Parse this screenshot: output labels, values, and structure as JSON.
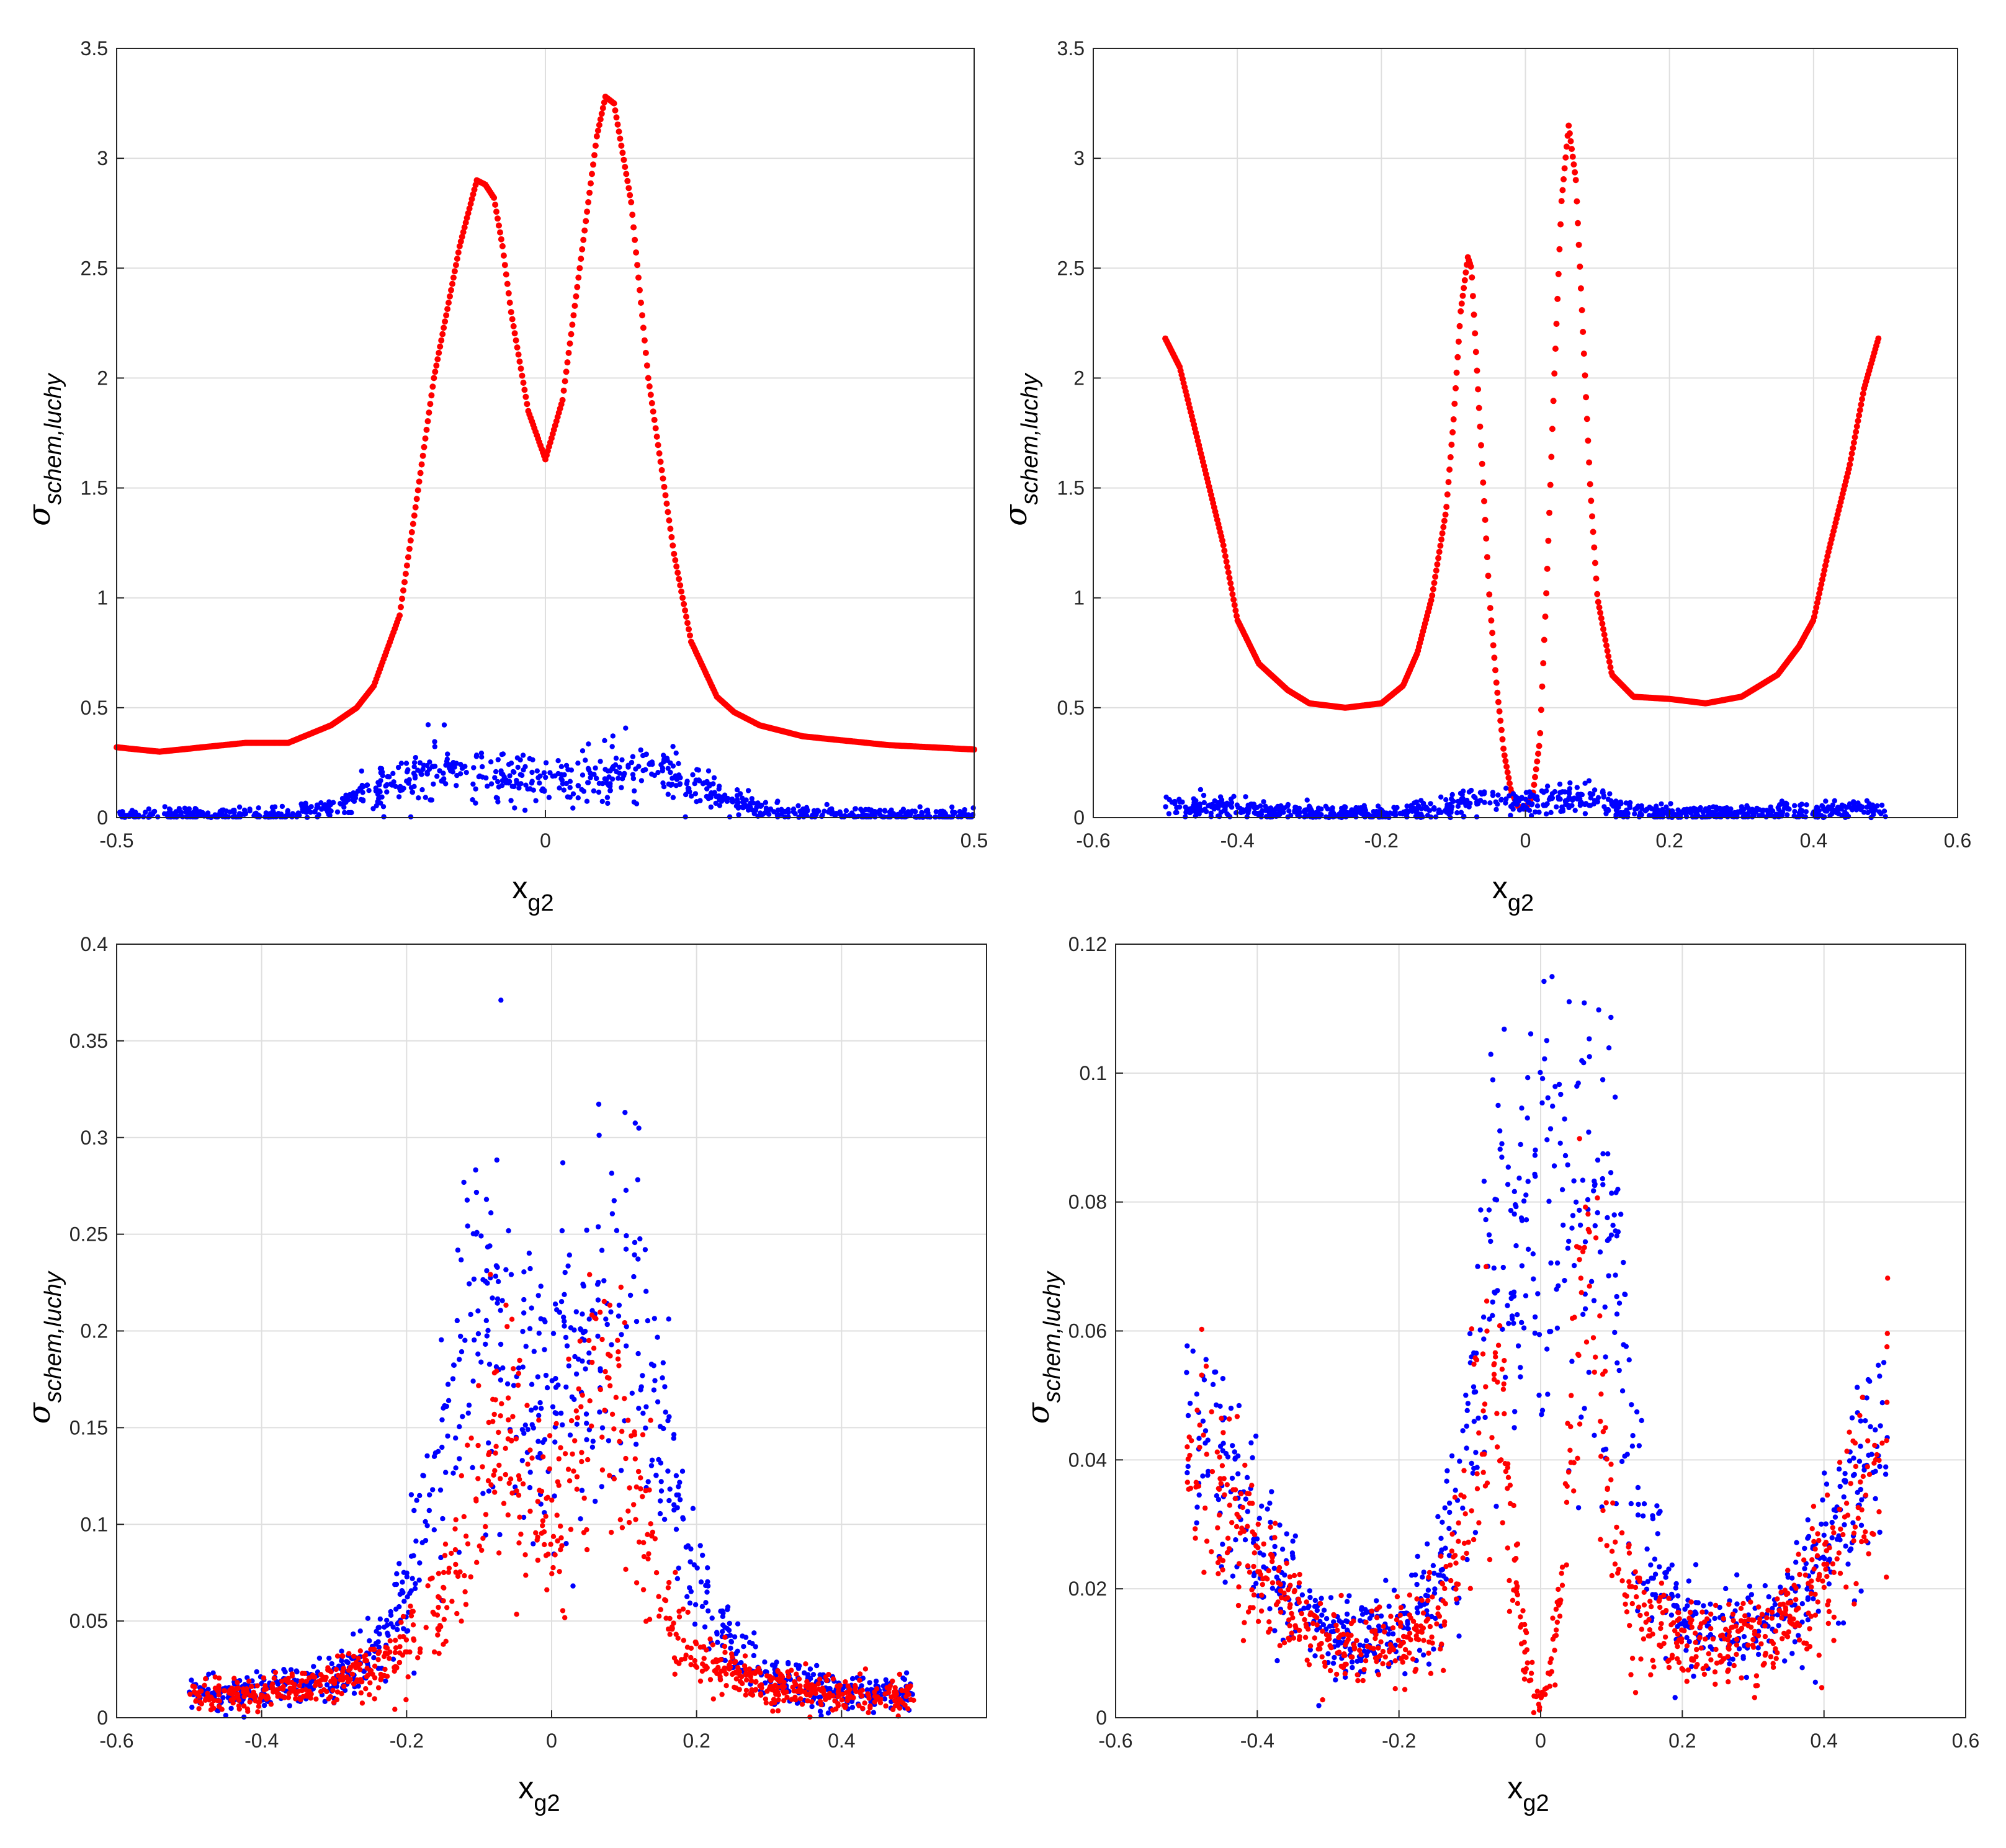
{
  "colors": {
    "red_series": "#ff0000",
    "blue_series": "#0000ff",
    "grid": "#dfdfdf",
    "axes": "#262626"
  },
  "chart_data": [
    {
      "type": "scatter",
      "panel": "top-left",
      "xlabel": {
        "main": "x",
        "sub": "g2"
      },
      "ylabel": {
        "main": "σ",
        "sub": "schem,luchy"
      },
      "xlim": [
        -0.5,
        0.5
      ],
      "ylim": [
        0,
        3.5
      ],
      "xticks": [
        -0.5,
        0,
        0.5
      ],
      "xtick_labels": [
        "-0.5",
        "0",
        "0.5"
      ],
      "yticks": [
        0,
        0.5,
        1,
        1.5,
        2,
        2.5,
        3,
        3.5
      ],
      "ytick_labels": [
        "0",
        "0.5",
        "1",
        "1.5",
        "2",
        "2.5",
        "3",
        "3.5"
      ],
      "grid": true,
      "series": [
        {
          "name": "red",
          "color": "#ff0000",
          "render": "curve",
          "x": [
            -0.5,
            -0.45,
            -0.4,
            -0.35,
            -0.3,
            -0.25,
            -0.22,
            -0.2,
            -0.17,
            -0.15,
            -0.13,
            -0.1,
            -0.08,
            -0.07,
            -0.06,
            -0.05,
            -0.04,
            -0.02,
            0,
            0.02,
            0.04,
            0.06,
            0.07,
            0.08,
            0.1,
            0.12,
            0.15,
            0.17,
            0.2,
            0.22,
            0.25,
            0.3,
            0.35,
            0.4,
            0.45,
            0.5
          ],
          "y": [
            0.32,
            0.3,
            0.32,
            0.34,
            0.34,
            0.42,
            0.5,
            0.6,
            0.92,
            1.45,
            2.0,
            2.6,
            2.9,
            2.88,
            2.82,
            2.6,
            2.3,
            1.85,
            1.63,
            1.9,
            2.5,
            3.1,
            3.28,
            3.25,
            2.8,
            2.0,
            1.2,
            0.8,
            0.55,
            0.48,
            0.42,
            0.37,
            0.35,
            0.33,
            0.32,
            0.31
          ]
        },
        {
          "name": "blue",
          "color": "#0000ff",
          "render": "scatter",
          "x": [
            -0.5,
            -0.4,
            -0.3,
            -0.25,
            -0.2,
            -0.15,
            -0.12,
            -0.1,
            -0.08,
            -0.05,
            0,
            0.05,
            0.08,
            0.1,
            0.12,
            0.15,
            0.2,
            0.25,
            0.3,
            0.4,
            0.5
          ],
          "y": [
            0.01,
            0.01,
            0.02,
            0.05,
            0.12,
            0.22,
            0.24,
            0.22,
            0.2,
            0.18,
            0.17,
            0.18,
            0.2,
            0.22,
            0.24,
            0.2,
            0.1,
            0.04,
            0.02,
            0.01,
            0.01
          ]
        }
      ]
    },
    {
      "type": "scatter",
      "panel": "top-right",
      "xlabel": {
        "main": "x",
        "sub": "g2"
      },
      "ylabel": {
        "main": "σ",
        "sub": "schem,luchy"
      },
      "xlim": [
        -0.6,
        0.6
      ],
      "ylim": [
        0,
        3.5
      ],
      "xticks": [
        -0.6,
        -0.4,
        -0.2,
        0,
        0.2,
        0.4,
        0.6
      ],
      "xtick_labels": [
        "-0.6",
        "-0.4",
        "-0.2",
        "0",
        "0.2",
        "0.4",
        "0.6"
      ],
      "yticks": [
        0,
        0.5,
        1,
        1.5,
        2,
        2.5,
        3,
        3.5
      ],
      "ytick_labels": [
        "0",
        "0.5",
        "1",
        "1.5",
        "2",
        "2.5",
        "3",
        "3.5"
      ],
      "grid": true,
      "series": [
        {
          "name": "red",
          "color": "#ff0000",
          "render": "curve",
          "x": [
            -0.5,
            -0.48,
            -0.45,
            -0.42,
            -0.4,
            -0.37,
            -0.33,
            -0.3,
            -0.25,
            -0.2,
            -0.17,
            -0.15,
            -0.13,
            -0.11,
            -0.1,
            -0.09,
            -0.08,
            -0.075,
            -0.07,
            -0.06,
            -0.05,
            -0.04,
            -0.03,
            -0.02,
            -0.01,
            0,
            0.01,
            0.02,
            0.03,
            0.04,
            0.05,
            0.06,
            0.07,
            0.08,
            0.09,
            0.1,
            0.12,
            0.15,
            0.2,
            0.25,
            0.3,
            0.35,
            0.38,
            0.4,
            0.42,
            0.45,
            0.47,
            0.49
          ],
          "y": [
            2.18,
            2.05,
            1.65,
            1.25,
            0.9,
            0.7,
            0.58,
            0.52,
            0.5,
            0.52,
            0.6,
            0.75,
            1.0,
            1.4,
            1.8,
            2.3,
            2.55,
            2.5,
            2.2,
            1.6,
            1.0,
            0.6,
            0.3,
            0.12,
            0.05,
            0.04,
            0.1,
            0.35,
            1.1,
            2.0,
            2.8,
            3.15,
            2.9,
            2.2,
            1.5,
            1.0,
            0.65,
            0.55,
            0.54,
            0.52,
            0.55,
            0.65,
            0.78,
            0.9,
            1.2,
            1.6,
            1.95,
            2.18
          ]
        },
        {
          "name": "blue",
          "color": "#0000ff",
          "render": "scatter",
          "x": [
            -0.5,
            -0.4,
            -0.3,
            -0.2,
            -0.15,
            -0.1,
            -0.08,
            -0.05,
            0,
            0.05,
            0.08,
            0.1,
            0.12,
            0.15,
            0.2,
            0.3,
            0.4,
            0.5
          ],
          "y": [
            0.05,
            0.04,
            0.02,
            0.02,
            0.03,
            0.06,
            0.08,
            0.07,
            0.07,
            0.08,
            0.09,
            0.08,
            0.05,
            0.03,
            0.02,
            0.02,
            0.03,
            0.05
          ]
        }
      ]
    },
    {
      "type": "scatter",
      "panel": "bottom-left",
      "xlabel": {
        "main": "x",
        "sub": "g2"
      },
      "ylabel": {
        "main": "σ",
        "sub": "schem,luchy"
      },
      "xlim": [
        -0.6,
        0.6
      ],
      "ylim": [
        0,
        0.4
      ],
      "xticks": [
        -0.6,
        -0.4,
        -0.2,
        0,
        0.2,
        0.4
      ],
      "xtick_labels": [
        "-0.6",
        "-0.4",
        "-0.2",
        "0",
        "0.2",
        "0.4"
      ],
      "yticks": [
        0,
        0.05,
        0.1,
        0.15,
        0.2,
        0.25,
        0.3,
        0.35,
        0.4
      ],
      "ytick_labels": [
        "0",
        "0.05",
        "0.1",
        "0.15",
        "0.2",
        "0.25",
        "0.3",
        "0.35",
        "0.4"
      ],
      "grid": true,
      "series": [
        {
          "name": "blue",
          "color": "#0000ff",
          "render": "scatter",
          "x": [
            -0.5,
            -0.4,
            -0.3,
            -0.25,
            -0.2,
            -0.15,
            -0.12,
            -0.1,
            -0.08,
            -0.05,
            0,
            0.05,
            0.08,
            0.1,
            0.12,
            0.15,
            0.2,
            0.25,
            0.3,
            0.4,
            0.5
          ],
          "y": [
            0.012,
            0.014,
            0.02,
            0.03,
            0.06,
            0.14,
            0.2,
            0.22,
            0.21,
            0.18,
            0.17,
            0.18,
            0.21,
            0.22,
            0.2,
            0.14,
            0.07,
            0.035,
            0.02,
            0.014,
            0.012
          ]
        },
        {
          "name": "red",
          "color": "#ff0000",
          "render": "scatter",
          "x": [
            -0.5,
            -0.4,
            -0.3,
            -0.2,
            -0.15,
            -0.1,
            -0.08,
            -0.06,
            -0.04,
            -0.02,
            0,
            0.02,
            0.04,
            0.06,
            0.08,
            0.1,
            0.12,
            0.15,
            0.2,
            0.3,
            0.4,
            0.5
          ],
          "y": [
            0.011,
            0.012,
            0.018,
            0.035,
            0.06,
            0.11,
            0.14,
            0.15,
            0.13,
            0.11,
            0.1,
            0.11,
            0.14,
            0.16,
            0.17,
            0.15,
            0.11,
            0.06,
            0.03,
            0.017,
            0.012,
            0.011
          ]
        }
      ]
    },
    {
      "type": "scatter",
      "panel": "bottom-right",
      "xlabel": {
        "main": "x",
        "sub": "g2"
      },
      "ylabel": {
        "main": "σ",
        "sub": "schem,luchy"
      },
      "xlim": [
        -0.6,
        0.6
      ],
      "ylim": [
        0,
        0.12
      ],
      "xticks": [
        -0.6,
        -0.4,
        -0.2,
        0,
        0.2,
        0.4,
        0.6
      ],
      "xtick_labels": [
        "-0.6",
        "-0.4",
        "-0.2",
        "0",
        "0.2",
        "0.4",
        "0.6"
      ],
      "yticks": [
        0,
        0.02,
        0.04,
        0.06,
        0.08,
        0.1,
        0.12
      ],
      "ytick_labels": [
        "0",
        "0.02",
        "0.04",
        "0.06",
        "0.08",
        "0.1",
        "0.12"
      ],
      "grid": true,
      "series": [
        {
          "name": "blue",
          "color": "#0000ff",
          "render": "scatter",
          "x": [
            -0.5,
            -0.45,
            -0.4,
            -0.35,
            -0.3,
            -0.25,
            -0.2,
            -0.15,
            -0.12,
            -0.1,
            -0.08,
            -0.06,
            -0.04,
            -0.02,
            0,
            0.02,
            0.04,
            0.06,
            0.08,
            0.1,
            0.12,
            0.15,
            0.2,
            0.25,
            0.3,
            0.35,
            0.4,
            0.45,
            0.49
          ],
          "y": [
            0.048,
            0.038,
            0.028,
            0.018,
            0.013,
            0.012,
            0.013,
            0.02,
            0.03,
            0.045,
            0.065,
            0.07,
            0.07,
            0.072,
            0.074,
            0.078,
            0.075,
            0.08,
            0.09,
            0.08,
            0.05,
            0.025,
            0.015,
            0.012,
            0.013,
            0.016,
            0.024,
            0.036,
            0.05
          ]
        },
        {
          "name": "red",
          "color": "#ff0000",
          "render": "scatter",
          "x": [
            -0.5,
            -0.45,
            -0.4,
            -0.35,
            -0.3,
            -0.25,
            -0.2,
            -0.15,
            -0.12,
            -0.1,
            -0.08,
            -0.07,
            -0.06,
            -0.05,
            -0.04,
            -0.03,
            -0.02,
            -0.01,
            0,
            0.01,
            0.02,
            0.03,
            0.04,
            0.05,
            0.06,
            0.07,
            0.08,
            0.1,
            0.12,
            0.15,
            0.2,
            0.25,
            0.3,
            0.35,
            0.4,
            0.45,
            0.49
          ],
          "y": [
            0.042,
            0.033,
            0.024,
            0.016,
            0.011,
            0.01,
            0.011,
            0.016,
            0.024,
            0.035,
            0.05,
            0.06,
            0.055,
            0.04,
            0.028,
            0.018,
            0.01,
            0.005,
            0.002,
            0.005,
            0.012,
            0.025,
            0.04,
            0.06,
            0.075,
            0.07,
            0.055,
            0.03,
            0.02,
            0.014,
            0.012,
            0.011,
            0.012,
            0.015,
            0.022,
            0.032,
            0.045
          ]
        }
      ]
    }
  ]
}
